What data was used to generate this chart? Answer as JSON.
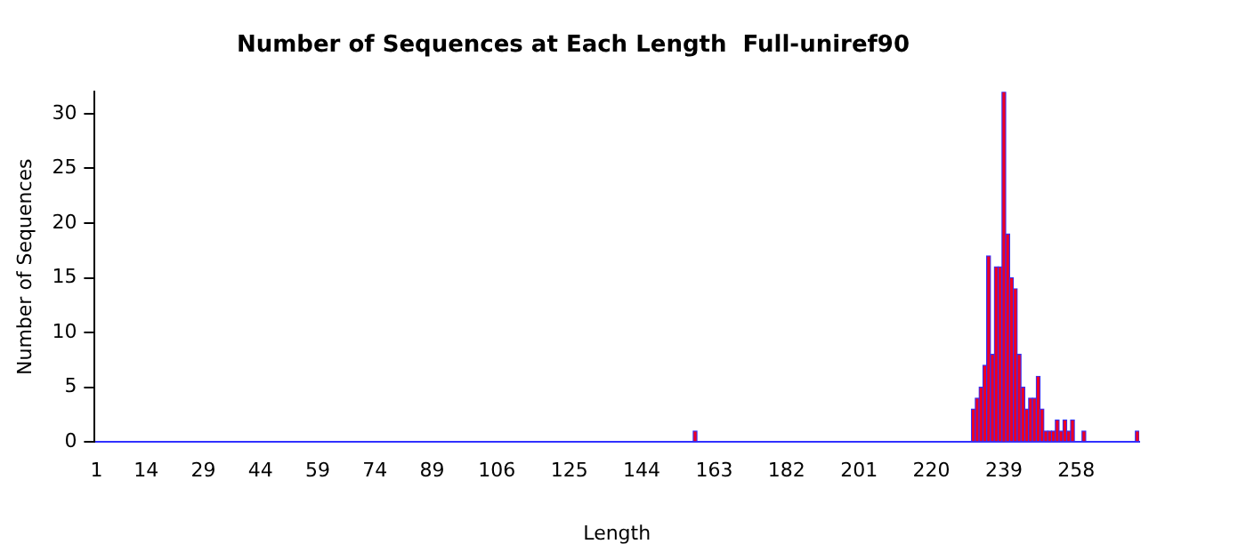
{
  "chart_data": {
    "type": "bar",
    "title": "Number of Sequences at Each Length  Full-uniref90",
    "xlabel": "Length",
    "ylabel": "Number of Sequences",
    "categories": [
      "1",
      null,
      null,
      null,
      null,
      null,
      null,
      null,
      null,
      null,
      null,
      null,
      null,
      "14",
      null,
      null,
      null,
      null,
      null,
      null,
      null,
      null,
      null,
      null,
      null,
      null,
      null,
      null,
      "29",
      null,
      null,
      null,
      null,
      null,
      null,
      null,
      null,
      null,
      null,
      null,
      null,
      null,
      null,
      "44",
      null,
      null,
      null,
      null,
      null,
      null,
      null,
      null,
      null,
      null,
      null,
      null,
      null,
      null,
      "59",
      null,
      null,
      null,
      null,
      null,
      null,
      null,
      null,
      null,
      null,
      null,
      null,
      null,
      null,
      "74",
      null,
      null,
      null,
      null,
      null,
      null,
      null,
      null,
      null,
      null,
      null,
      null,
      null,
      null,
      "89",
      null,
      null,
      null,
      null,
      null,
      null,
      null,
      null,
      null,
      null,
      null,
      null,
      null,
      null,
      null,
      null,
      "106",
      null,
      null,
      null,
      null,
      null,
      null,
      null,
      null,
      null,
      null,
      null,
      null,
      null,
      null,
      null,
      null,
      null,
      null,
      "125",
      null,
      null,
      null,
      null,
      null,
      null,
      null,
      null,
      null,
      null,
      null,
      null,
      null,
      null,
      null,
      null,
      null,
      null,
      "144",
      null,
      null,
      null,
      null,
      null,
      null,
      null,
      null,
      null,
      null,
      null,
      null,
      null,
      null,
      null,
      null,
      null,
      null,
      "163",
      null,
      null,
      null,
      null,
      null,
      null,
      null,
      null,
      null,
      null,
      null,
      null,
      null,
      null,
      null,
      null,
      null,
      null,
      "182",
      null,
      null,
      null,
      null,
      null,
      null,
      null,
      null,
      null,
      null,
      null,
      null,
      null,
      null,
      null,
      null,
      null,
      null,
      "201",
      null,
      null,
      null,
      null,
      null,
      null,
      null,
      null,
      null,
      null,
      null,
      null,
      null,
      null,
      null,
      null,
      null,
      null,
      "220",
      null,
      null,
      null,
      null,
      null,
      null,
      null,
      null,
      null,
      null,
      null,
      null,
      null,
      null,
      null,
      null,
      null,
      null,
      "239",
      null,
      null,
      null,
      null,
      null,
      null,
      null,
      null,
      null,
      null,
      null,
      null,
      null,
      null,
      null,
      null,
      null,
      null,
      "258",
      null,
      null,
      null,
      null,
      null,
      null,
      null,
      null,
      null,
      null,
      null,
      null,
      null,
      null,
      null,
      null
    ],
    "values": [
      0,
      0,
      0,
      0,
      0,
      0,
      0,
      0,
      0,
      0,
      0,
      0,
      0,
      0,
      0,
      0,
      0,
      0,
      0,
      0,
      0,
      0,
      0,
      0,
      0,
      0,
      0,
      0,
      0,
      0,
      0,
      0,
      0,
      0,
      0,
      0,
      0,
      0,
      0,
      0,
      0,
      0,
      0,
      0,
      0,
      0,
      0,
      0,
      0,
      0,
      0,
      0,
      0,
      0,
      0,
      0,
      0,
      0,
      0,
      0,
      0,
      0,
      0,
      0,
      0,
      0,
      0,
      0,
      0,
      0,
      0,
      0,
      0,
      0,
      0,
      0,
      0,
      0,
      0,
      0,
      0,
      0,
      0,
      0,
      0,
      0,
      0,
      0,
      0,
      0,
      0,
      0,
      0,
      0,
      0,
      0,
      0,
      0,
      0,
      0,
      0,
      0,
      0,
      0,
      0,
      0,
      0,
      0,
      0,
      0,
      0,
      0,
      0,
      0,
      0,
      0,
      0,
      0,
      0,
      0,
      0,
      0,
      0,
      0,
      0,
      0,
      0,
      0,
      0,
      0,
      0,
      0,
      0,
      0,
      0,
      0,
      0,
      0,
      0,
      0,
      0,
      0,
      0,
      0,
      0,
      0,
      0,
      0,
      0,
      0,
      0,
      0,
      0,
      0,
      0,
      0,
      0,
      1,
      0,
      0,
      0,
      0,
      0,
      0,
      0,
      0,
      0,
      0,
      0,
      0,
      0,
      0,
      0,
      0,
      0,
      0,
      0,
      0,
      0,
      0,
      0,
      0,
      0,
      0,
      0,
      0,
      0,
      0,
      0,
      0,
      0,
      0,
      0,
      0,
      0,
      0,
      0,
      0,
      0,
      0,
      0,
      0,
      0,
      0,
      0,
      0,
      0,
      0,
      0,
      0,
      0,
      0,
      0,
      0,
      0,
      0,
      0,
      0,
      0,
      0,
      0,
      0,
      0,
      0,
      0,
      0,
      0,
      0,
      0,
      0,
      3,
      4,
      5,
      7,
      17,
      8,
      16,
      16,
      32,
      19,
      15,
      14,
      8,
      5,
      3,
      4,
      4,
      6,
      3,
      1,
      1,
      1,
      2,
      1,
      2,
      1,
      2,
      0,
      0,
      1,
      0,
      0,
      0,
      0,
      0,
      0,
      0,
      0,
      0,
      0,
      0,
      0,
      0,
      1
    ],
    "color": "#ee0022",
    "ylim": [
      0,
      32
    ],
    "yticks": [
      0,
      5,
      10,
      15,
      20,
      25,
      30
    ],
    "grid": false,
    "legend": false
  }
}
